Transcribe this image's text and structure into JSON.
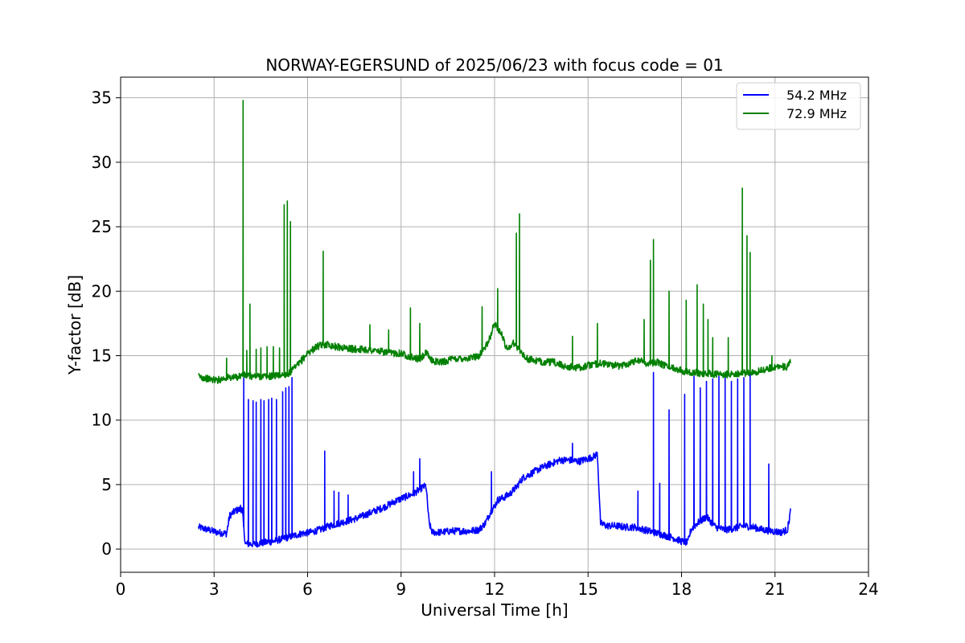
{
  "chart_data": {
    "type": "line",
    "title": "NORWAY-EGERSUND of 2025/06/23 with focus code = 01",
    "xlabel": "Universal Time [h]",
    "ylabel": "Y-factor [dB]",
    "xlim": [
      0,
      24
    ],
    "ylim": [
      -1.8,
      36.6
    ],
    "xticks": [
      0,
      3,
      6,
      9,
      12,
      15,
      18,
      21,
      24
    ],
    "yticks": [
      0,
      5,
      10,
      15,
      20,
      25,
      30,
      35
    ],
    "grid": true,
    "legend_position": "top-right",
    "series": [
      {
        "name": "54.2 MHz",
        "color": "#0000ff",
        "x": [
          2.5,
          2.8,
          3.1,
          3.4,
          3.5,
          3.7,
          3.9,
          4.0,
          4.3,
          4.6,
          4.9,
          5.2,
          5.5,
          5.8,
          6.1,
          6.4,
          6.7,
          7.0,
          7.3,
          7.6,
          7.9,
          8.2,
          8.5,
          8.8,
          9.1,
          9.4,
          9.7,
          9.8,
          9.9,
          10.0,
          10.3,
          10.6,
          10.9,
          11.2,
          11.5,
          11.7,
          11.9,
          12.0,
          12.1,
          12.3,
          12.5,
          12.7,
          12.9,
          13.2,
          13.5,
          13.8,
          14.1,
          14.4,
          14.7,
          15.0,
          15.2,
          15.3,
          15.4,
          15.6,
          15.9,
          16.2,
          16.5,
          16.8,
          17.1,
          17.4,
          17.7,
          18.0,
          18.2,
          18.3,
          18.5,
          18.8,
          19.1,
          19.4,
          19.7,
          20.0,
          20.3,
          20.6,
          20.9,
          21.2,
          21.4,
          21.5
        ],
        "y": [
          1.7,
          1.5,
          1.3,
          1.2,
          2.6,
          3.0,
          3.1,
          0.4,
          0.4,
          0.5,
          0.6,
          0.8,
          1.0,
          1.2,
          1.3,
          1.5,
          1.8,
          2.0,
          2.2,
          2.4,
          2.7,
          3.0,
          3.3,
          3.7,
          4.0,
          4.3,
          4.8,
          4.9,
          2.0,
          1.3,
          1.3,
          1.4,
          1.4,
          1.4,
          1.5,
          2.0,
          3.0,
          3.3,
          3.8,
          4.0,
          4.3,
          4.8,
          5.5,
          5.9,
          6.3,
          6.6,
          6.9,
          6.9,
          6.8,
          7.0,
          7.2,
          7.4,
          2.0,
          1.8,
          1.8,
          1.7,
          1.7,
          1.5,
          1.3,
          1.1,
          0.9,
          0.6,
          0.5,
          1.5,
          2.0,
          2.5,
          1.7,
          1.5,
          1.6,
          1.8,
          1.7,
          1.5,
          1.4,
          1.3,
          1.5,
          3.0
        ],
        "spikes": [
          [
            3.85,
            3.4
          ],
          [
            3.95,
            13.3
          ],
          [
            4.1,
            11.6
          ],
          [
            4.25,
            11.5
          ],
          [
            4.35,
            11.4
          ],
          [
            4.5,
            11.6
          ],
          [
            4.6,
            11.5
          ],
          [
            4.75,
            11.6
          ],
          [
            4.85,
            11.7
          ],
          [
            5.0,
            11.6
          ],
          [
            5.2,
            12.2
          ],
          [
            5.3,
            12.5
          ],
          [
            5.4,
            12.6
          ],
          [
            5.5,
            13.3
          ],
          [
            6.55,
            7.6
          ],
          [
            6.85,
            4.5
          ],
          [
            7.0,
            4.4
          ],
          [
            7.3,
            4.2
          ],
          [
            9.6,
            7.0
          ],
          [
            9.4,
            6.0
          ],
          [
            11.9,
            6.0
          ],
          [
            14.5,
            8.2
          ],
          [
            16.6,
            4.5
          ],
          [
            17.1,
            13.7
          ],
          [
            17.3,
            5.1
          ],
          [
            17.6,
            10.8
          ],
          [
            18.1,
            12.0
          ],
          [
            18.4,
            13.4
          ],
          [
            18.6,
            12.5
          ],
          [
            18.8,
            13.0
          ],
          [
            19.0,
            13.2
          ],
          [
            19.2,
            13.4
          ],
          [
            19.4,
            13.4
          ],
          [
            19.6,
            13.0
          ],
          [
            19.8,
            13.2
          ],
          [
            20.0,
            13.3
          ],
          [
            20.2,
            13.6
          ],
          [
            20.8,
            6.6
          ]
        ]
      },
      {
        "name": "72.9 MHz",
        "color": "#008000",
        "x": [
          2.5,
          2.8,
          3.1,
          3.4,
          3.7,
          3.9,
          4.2,
          4.5,
          4.8,
          5.1,
          5.4,
          5.7,
          6.0,
          6.3,
          6.6,
          6.9,
          7.2,
          7.5,
          7.8,
          8.1,
          8.4,
          8.7,
          9.0,
          9.3,
          9.6,
          9.8,
          10.0,
          10.3,
          10.6,
          10.9,
          11.2,
          11.5,
          11.8,
          12.0,
          12.2,
          12.4,
          12.6,
          12.8,
          13.0,
          13.3,
          13.6,
          13.9,
          14.2,
          14.5,
          14.8,
          15.1,
          15.4,
          15.7,
          16.0,
          16.3,
          16.6,
          16.9,
          17.2,
          17.5,
          17.8,
          18.1,
          18.4,
          18.7,
          19.0,
          19.3,
          19.6,
          19.9,
          20.2,
          20.5,
          20.8,
          21.1,
          21.4,
          21.5
        ],
        "y": [
          13.4,
          13.2,
          13.1,
          13.3,
          13.3,
          13.5,
          13.4,
          13.4,
          13.4,
          13.5,
          13.6,
          14.3,
          15.2,
          15.7,
          15.9,
          15.7,
          15.6,
          15.5,
          15.5,
          15.4,
          15.3,
          15.2,
          15.2,
          14.9,
          14.7,
          15.2,
          14.6,
          14.5,
          14.7,
          14.8,
          14.8,
          15.0,
          16.0,
          17.5,
          16.8,
          15.5,
          16.0,
          15.5,
          14.8,
          14.6,
          14.5,
          14.5,
          14.2,
          14.1,
          14.1,
          14.3,
          14.4,
          14.3,
          14.2,
          14.4,
          14.7,
          14.4,
          14.5,
          14.2,
          14.0,
          13.8,
          13.7,
          13.6,
          13.6,
          13.5,
          13.6,
          13.6,
          13.7,
          13.8,
          14.0,
          14.2,
          14.1,
          14.5
        ],
        "spikes": [
          [
            3.4,
            14.8
          ],
          [
            3.93,
            34.8
          ],
          [
            4.05,
            15.4
          ],
          [
            4.15,
            19.0
          ],
          [
            4.35,
            15.5
          ],
          [
            4.5,
            15.6
          ],
          [
            4.7,
            15.7
          ],
          [
            4.9,
            15.7
          ],
          [
            5.1,
            15.6
          ],
          [
            5.25,
            26.7
          ],
          [
            5.35,
            27.0
          ],
          [
            5.45,
            25.4
          ],
          [
            6.5,
            23.1
          ],
          [
            8.0,
            17.4
          ],
          [
            8.6,
            17.0
          ],
          [
            9.3,
            18.7
          ],
          [
            9.6,
            17.5
          ],
          [
            11.6,
            18.8
          ],
          [
            12.1,
            20.2
          ],
          [
            12.7,
            24.5
          ],
          [
            12.8,
            26.0
          ],
          [
            14.5,
            16.5
          ],
          [
            15.3,
            17.5
          ],
          [
            16.8,
            17.8
          ],
          [
            17.0,
            22.4
          ],
          [
            17.1,
            24.0
          ],
          [
            17.6,
            20.0
          ],
          [
            18.15,
            19.3
          ],
          [
            18.5,
            20.5
          ],
          [
            18.7,
            19.0
          ],
          [
            18.85,
            17.8
          ],
          [
            19.0,
            16.4
          ],
          [
            19.5,
            16.4
          ],
          [
            19.95,
            28.0
          ],
          [
            20.1,
            24.3
          ],
          [
            20.2,
            23.0
          ],
          [
            20.9,
            15.0
          ]
        ]
      }
    ]
  }
}
